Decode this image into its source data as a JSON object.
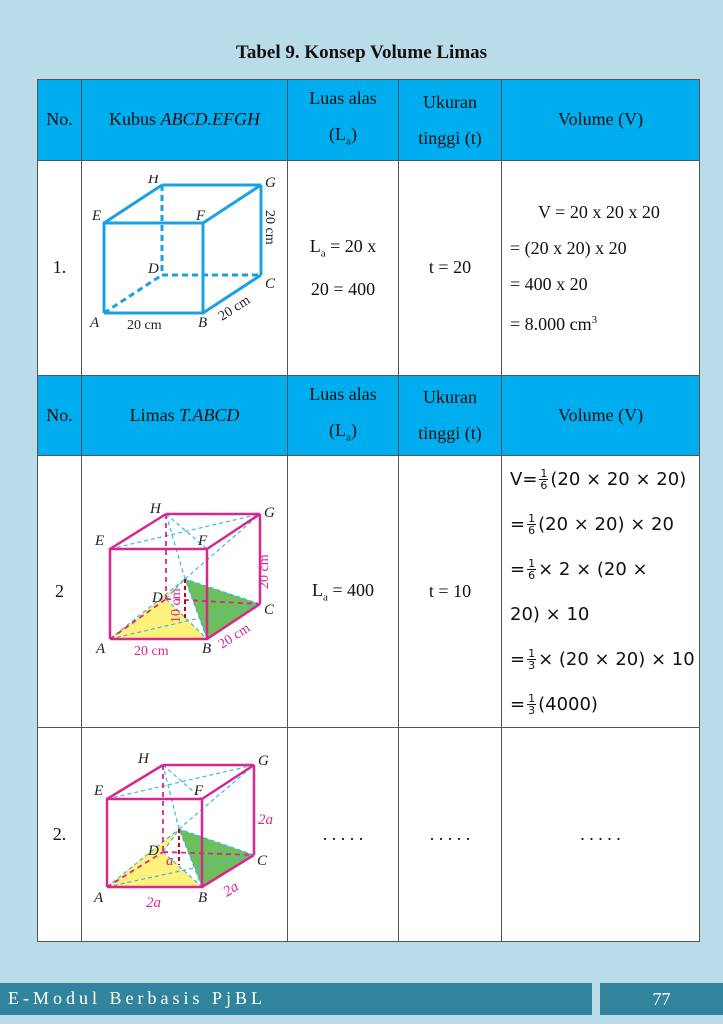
{
  "title": "Tabel 9. Konsep Volume Limas",
  "header1": {
    "no": "No.",
    "shape_prefix": "Kubus ",
    "shape_name": "ABCD.EFGH",
    "luas_line1": "Luas alas",
    "luas_line2": "(L",
    "luas_sub": "a",
    "luas_close": ")",
    "tinggi_line1": "Ukuran",
    "tinggi_line2": "tinggi (t)",
    "volume": "Volume (V)"
  },
  "row1": {
    "no": "1.",
    "luas_line1": "L",
    "luas_sub": "a",
    "luas_rest1": " = 20 x",
    "luas_line2": "20 = 400",
    "tinggi": "t = 20",
    "vol_lines": [
      "V = 20 x 20 x 20",
      "= (20 x 20) x 20",
      "= 400 x 20",
      "= 8.000 cm"
    ],
    "vol_sup": "3",
    "fig": {
      "A": "A",
      "B": "B",
      "C": "C",
      "D": "D",
      "E": "E",
      "F": "F",
      "G": "G",
      "H": "H",
      "ab": "20 cm",
      "bc": "20 cm",
      "cg": "20 cm"
    }
  },
  "header2": {
    "no": "No.",
    "shape_prefix": "Limas ",
    "shape_name": "T.ABCD",
    "luas_line1": "Luas alas",
    "luas_line2": "(L",
    "luas_sub": "a",
    "luas_close": ")",
    "tinggi_line1": "Ukuran",
    "tinggi_line2": "tinggi (t)",
    "volume": "Volume (V)"
  },
  "row2": {
    "no": "2",
    "luas_pre": "L",
    "luas_sub": "a",
    "luas_rest": " = 400",
    "tinggi": "t = 10",
    "vol": {
      "l1_pre": "V=",
      "l1_num": "1",
      "l1_den": "6",
      "l1_post": "(20 × 20 × 20)",
      "l2_pre": "=",
      "l2_num": "1",
      "l2_den": "6",
      "l2_post": "(20 × 20) × 20",
      "l3_pre": "=",
      "l3_num": "1",
      "l3_den": "6",
      "l3_post": "× 2 × (20 ×",
      "l4": "20) × 10",
      "l5_pre": "=",
      "l5_num": "1",
      "l5_den": "3",
      "l5_post": "× (20 × 20) × 10",
      "l6_pre": "=",
      "l6_num": "1",
      "l6_den": "3",
      "l6_post": "(4000)"
    },
    "fig": {
      "A": "A",
      "B": "B",
      "C": "C",
      "D": "D",
      "E": "E",
      "F": "F",
      "G": "G",
      "H": "H",
      "ab": "20 cm",
      "bc": "20 cm",
      "cg": "20 cm",
      "h": "10 cm"
    }
  },
  "row3": {
    "no": "2.",
    "luas": ". . . . .",
    "tinggi": ". . . . .",
    "volume": ". . . . .",
    "fig": {
      "A": "A",
      "B": "B",
      "C": "C",
      "D": "D",
      "E": "E",
      "F": "F",
      "G": "G",
      "H": "H",
      "ab": "2a",
      "bc": "2a",
      "cg": "2a",
      "h": "a"
    }
  },
  "footer": {
    "text": "E-Modul Berbasis PjBL",
    "page": "77"
  },
  "colors": {
    "header": "#00aeef",
    "cube1": "#1ba1e2",
    "magenta": "#d6288f",
    "yellow": "#fff27a",
    "green": "#6cbf5a",
    "footer": "#31849b"
  }
}
